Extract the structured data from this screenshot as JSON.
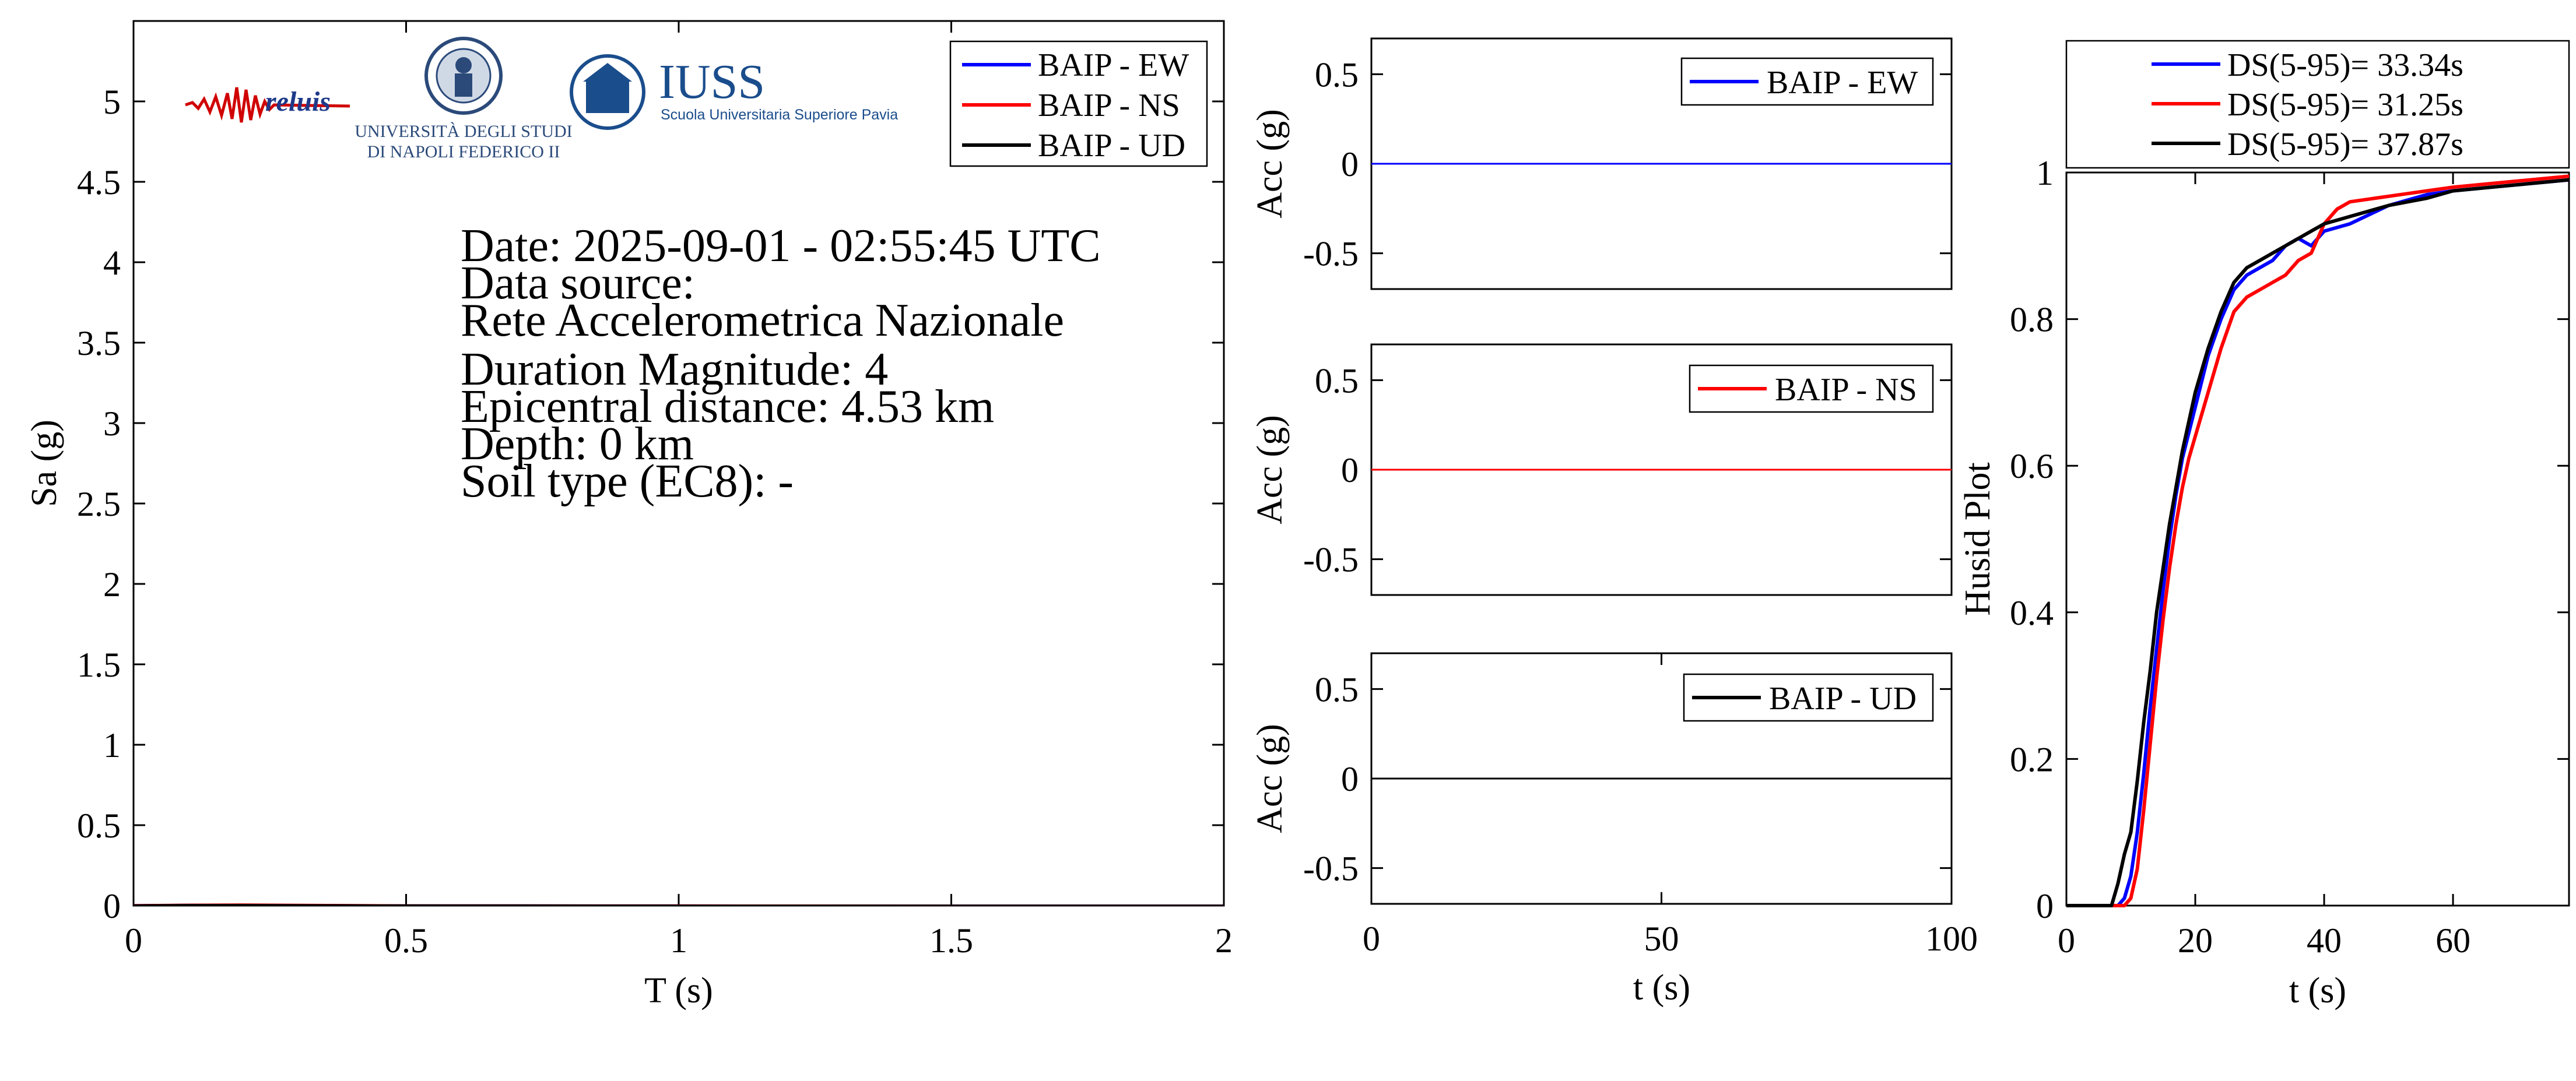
{
  "colors": {
    "ew": "#0000ff",
    "ns": "#ff0000",
    "ud": "#000000"
  },
  "info": {
    "date": "Date: 2025-09-01 - 02:55:45 UTC",
    "source_label": "Data source:",
    "source_name": "Rete Accelerometrica Nazionale",
    "magnitude": "Duration Magnitude: 4",
    "distance": "Epicentral distance: 4.53 km",
    "depth": "Depth: 0 km",
    "soil": "Soil type (EC8): -"
  },
  "logos": {
    "reluis": "reluis",
    "unina_line1": "UNIVERSITÀ DEGLI STUDI",
    "unina_line2": "DI NAPOLI FEDERICO II",
    "iuss_name": "IUSS",
    "iuss_sub": "Scuola Universitaria Superiore Pavia"
  },
  "chart_data": [
    {
      "type": "line",
      "name": "response-spectrum",
      "xlabel": "T (s)",
      "ylabel": "Sa (g)",
      "xlim": [
        0,
        2
      ],
      "ylim": [
        0,
        5.5
      ],
      "xticks": [
        0,
        0.5,
        1,
        1.5,
        2
      ],
      "xtick_labels": [
        "0",
        "0.5",
        "1",
        "1.5",
        "2"
      ],
      "yticks": [
        0,
        0.5,
        1,
        1.5,
        2,
        2.5,
        3,
        3.5,
        4,
        4.5,
        5
      ],
      "ytick_labels": [
        "0",
        "0.5",
        "1",
        "1.5",
        "2",
        "2.5",
        "3",
        "3.5",
        "4",
        "4.5",
        "5"
      ],
      "legend_position": "top-right",
      "series": [
        {
          "name": "BAIP - EW",
          "key": "ew",
          "x": [
            0,
            0.1,
            0.2,
            0.3,
            0.5,
            1,
            1.5,
            2
          ],
          "y": [
            0.004,
            0.006,
            0.006,
            0.005,
            0.003,
            0.002,
            0.001,
            0.001
          ]
        },
        {
          "name": "BAIP - NS",
          "key": "ns",
          "x": [
            0,
            0.1,
            0.2,
            0.3,
            0.5,
            1,
            1.5,
            2
          ],
          "y": [
            0.004,
            0.007,
            0.008,
            0.006,
            0.003,
            0.002,
            0.001,
            0.001
          ]
        },
        {
          "name": "BAIP - UD",
          "key": "ud",
          "x": [
            0,
            0.1,
            0.2,
            0.3,
            0.5,
            1,
            1.5,
            2
          ],
          "y": [
            0.003,
            0.005,
            0.005,
            0.004,
            0.002,
            0.001,
            0.001,
            0.001
          ]
        }
      ]
    },
    {
      "type": "line",
      "name": "acc-ew",
      "ylabel": "Acc (g)",
      "xlim": [
        0,
        100
      ],
      "ylim": [
        -0.7,
        0.7
      ],
      "yticks": [
        -0.5,
        0,
        0.5
      ],
      "ytick_labels": [
        "-0.5",
        "0",
        "0.5"
      ],
      "legend_position": "top-right",
      "series": [
        {
          "name": "BAIP - EW",
          "key": "ew",
          "x": [
            0,
            100
          ],
          "y": [
            0,
            0
          ]
        }
      ]
    },
    {
      "type": "line",
      "name": "acc-ns",
      "ylabel": "Acc (g)",
      "xlim": [
        0,
        100
      ],
      "ylim": [
        -0.7,
        0.7
      ],
      "yticks": [
        -0.5,
        0,
        0.5
      ],
      "ytick_labels": [
        "-0.5",
        "0",
        "0.5"
      ],
      "legend_position": "top-right",
      "series": [
        {
          "name": "BAIP - NS",
          "key": "ns",
          "x": [
            0,
            100
          ],
          "y": [
            0,
            0
          ]
        }
      ]
    },
    {
      "type": "line",
      "name": "acc-ud",
      "xlabel": "t (s)",
      "ylabel": "Acc (g)",
      "xlim": [
        0,
        100
      ],
      "ylim": [
        -0.7,
        0.7
      ],
      "xticks": [
        0,
        50,
        100
      ],
      "xtick_labels": [
        "0",
        "50",
        "100"
      ],
      "yticks": [
        -0.5,
        0,
        0.5
      ],
      "ytick_labels": [
        "-0.5",
        "0",
        "0.5"
      ],
      "legend_position": "top-right",
      "series": [
        {
          "name": "BAIP - UD",
          "key": "ud",
          "x": [
            0,
            100
          ],
          "y": [
            0,
            0
          ]
        }
      ]
    },
    {
      "type": "line",
      "name": "husid",
      "xlabel": "t (s)",
      "ylabel": "Husid Plot",
      "xlim": [
        0,
        78
      ],
      "ylim": [
        0,
        1
      ],
      "xticks": [
        0,
        20,
        40,
        60
      ],
      "xtick_labels": [
        "0",
        "20",
        "40",
        "60"
      ],
      "yticks": [
        0,
        0.2,
        0.4,
        0.6,
        0.8,
        1
      ],
      "ytick_labels": [
        "0",
        "0.2",
        "0.4",
        "0.6",
        "0.8",
        "1"
      ],
      "legend_position": "top",
      "series": [
        {
          "name": "DS(5-95)= 33.34s",
          "key": "ew",
          "x": [
            0,
            8,
            9,
            10,
            11,
            12,
            13,
            14,
            15,
            16,
            17,
            18,
            20,
            22,
            24,
            26,
            28,
            30,
            32,
            34,
            36,
            38,
            40,
            44,
            50,
            56,
            60,
            66,
            72,
            78
          ],
          "y": [
            0,
            0,
            0.01,
            0.04,
            0.1,
            0.18,
            0.27,
            0.35,
            0.43,
            0.5,
            0.56,
            0.61,
            0.68,
            0.75,
            0.8,
            0.84,
            0.86,
            0.87,
            0.88,
            0.9,
            0.91,
            0.9,
            0.92,
            0.93,
            0.955,
            0.97,
            0.975,
            0.98,
            0.985,
            0.99
          ]
        },
        {
          "name": "DS(5-95)= 31.25s",
          "key": "ns",
          "x": [
            0,
            9,
            10,
            11,
            12,
            13,
            14,
            15,
            16,
            17,
            18,
            19,
            20,
            22,
            24,
            26,
            28,
            30,
            32,
            34,
            36,
            38,
            40,
            42,
            44,
            48,
            52,
            60,
            66,
            72,
            78
          ],
          "y": [
            0,
            0,
            0.01,
            0.05,
            0.13,
            0.22,
            0.31,
            0.39,
            0.46,
            0.52,
            0.57,
            0.61,
            0.64,
            0.7,
            0.76,
            0.81,
            0.83,
            0.84,
            0.85,
            0.86,
            0.88,
            0.89,
            0.93,
            0.95,
            0.96,
            0.965,
            0.97,
            0.98,
            0.985,
            0.99,
            0.995
          ]
        },
        {
          "name": "DS(5-95)= 37.87s",
          "key": "ud",
          "x": [
            0,
            7,
            8,
            9,
            10,
            11,
            12,
            13,
            14,
            15,
            16,
            17,
            18,
            20,
            22,
            24,
            26,
            28,
            30,
            32,
            34,
            36,
            38,
            40,
            44,
            50,
            56,
            60,
            66,
            72,
            78
          ],
          "y": [
            0,
            0,
            0.03,
            0.07,
            0.1,
            0.17,
            0.25,
            0.32,
            0.4,
            0.46,
            0.52,
            0.57,
            0.62,
            0.7,
            0.76,
            0.81,
            0.85,
            0.87,
            0.88,
            0.89,
            0.9,
            0.91,
            0.92,
            0.93,
            0.94,
            0.955,
            0.965,
            0.975,
            0.98,
            0.985,
            0.99
          ]
        }
      ]
    }
  ]
}
